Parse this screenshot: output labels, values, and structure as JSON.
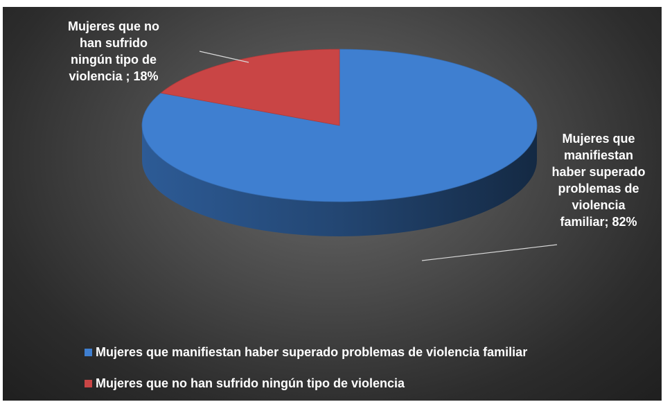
{
  "chart_data": {
    "type": "pie",
    "title": "",
    "categories": [
      "Mujeres que manifiestan haber superado problemas de violencia familiar",
      "Mujeres que no han sufrido ningún tipo de violencia"
    ],
    "values": [
      82,
      18
    ],
    "data_labels": [
      "Mujeres que\nmanifiestan\nhaber superado\nproblemas de\nviolencia\nfamiliar; 82%",
      "Mujeres que no\nhan sufrido\nningún tipo de\nviolencia ; 18%"
    ],
    "colors": [
      "#3f7fd0",
      "#c94545"
    ],
    "legend_position": "bottom",
    "style": "3d"
  }
}
